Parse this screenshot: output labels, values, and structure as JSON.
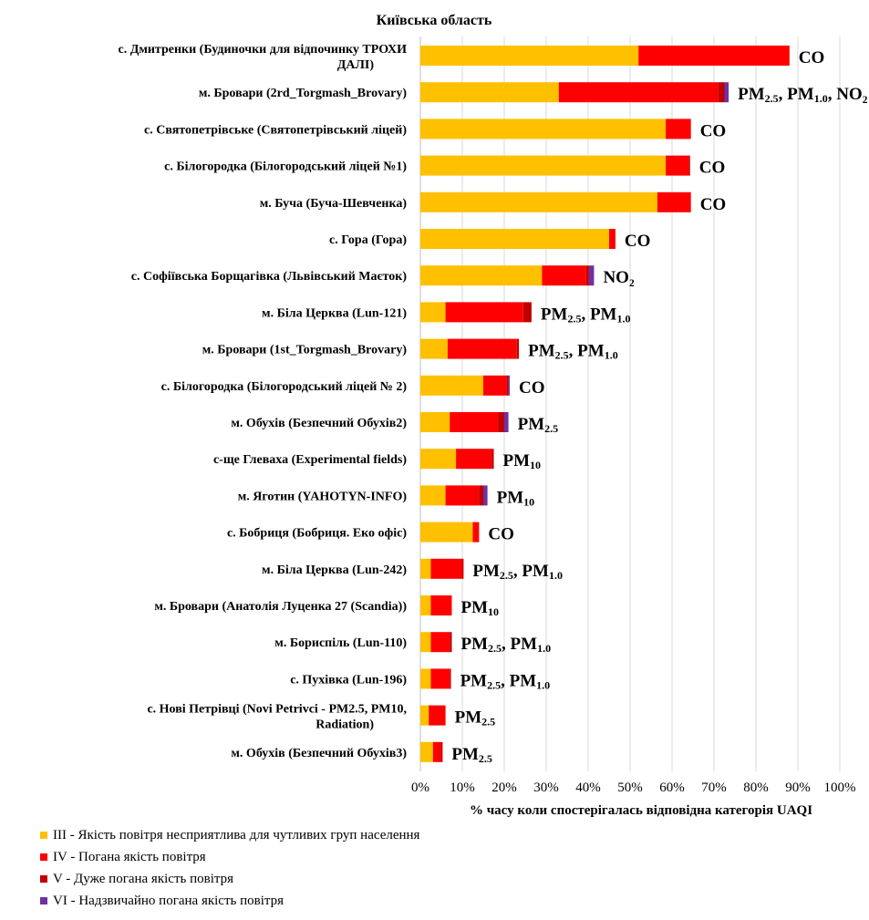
{
  "chart_data": {
    "type": "bar",
    "orientation": "horizontal",
    "stacked": true,
    "title": "Київська область",
    "xlabel": "% часу коли спостерігалась відповідна категорія UAQI",
    "ylabel": "",
    "xlim": [
      0,
      100
    ],
    "xticks": [
      "0%",
      "10%",
      "20%",
      "30%",
      "40%",
      "50%",
      "60%",
      "70%",
      "80%",
      "90%",
      "100%"
    ],
    "gridlines": true,
    "legend_position": "bottom-left",
    "categories": [
      "с. Дмитренки (Будиночки для відпочинку ТРОХИ ДАЛІ)",
      "м. Бровари  (2rd_Torgmash_Brovary)",
      "с. Святопетрівське (Святопетрівський ліцей)",
      "с. Білогородка (Білогородський ліцей №1)",
      "м. Буча  (Буча-Шевченка)",
      "с. Гора  (Гора)",
      "с. Софіївська Борщагівка  (Львівський Маєток)",
      "м. Біла Церква  (Lun-121)",
      "м. Бровари  (1st_Torgmash_Brovary)",
      "с. Білогородка (Білогородський ліцей № 2)",
      "м. Обухів  (Безпечний Обухів2)",
      "с-ще Глеваха  (Experimental fields)",
      "м. Яготин  (YAHOTYN-INFO)",
      "с. Бобриця  (Бобриця. Еко офіс)",
      "м. Біла Церква  (Lun-242)",
      "м. Бровари  (Анатолія Луценка 27 (Scandia))",
      "м. Бориспіль (Lun-110)",
      "с. Пухівка  (Lun-196)",
      "с. Нові Петрівці (Novi Petrivci - PM2.5, PM10, Radiation)",
      "м. Обухів  (Безпечний Обухів3)"
    ],
    "series": [
      {
        "name": "III - Якість повітря  несприятлива  для чутливих  груп  населення",
        "color": "#FFC000",
        "values": [
          52,
          33,
          58.5,
          58.5,
          56.5,
          45,
          29,
          6,
          6.5,
          15,
          7,
          8.5,
          6,
          12.5,
          2.5,
          2.5,
          2.5,
          2.5,
          2,
          3
        ]
      },
      {
        "name": "IV - Погана якість повітря",
        "color": "#FF0000",
        "values": [
          36,
          38,
          6,
          5.5,
          8,
          1.5,
          10.5,
          18.5,
          16.5,
          5.5,
          11.5,
          8.5,
          8,
          1.5,
          7.5,
          5,
          4.5,
          4.5,
          4,
          2
        ]
      },
      {
        "name": "V - Дуже погана  якість повітря",
        "color": "#C00000",
        "values": [
          0,
          1.5,
          0,
          0.3,
          0,
          0,
          0.7,
          2,
          0.5,
          0.5,
          1.5,
          0.5,
          1,
          0,
          0.3,
          0,
          0.5,
          0.3,
          0,
          0.3
        ]
      },
      {
        "name": "VI - Надзвичайно  погана  якість повітря",
        "color": "#7030A0",
        "values": [
          0,
          1,
          0,
          0,
          0,
          0,
          1.2,
          0,
          0,
          0.3,
          1,
          0,
          1,
          0,
          0,
          0,
          0,
          0,
          0,
          0
        ]
      }
    ],
    "annotations": [
      [
        {
          "t": "CO"
        }
      ],
      [
        {
          "t": "PM"
        },
        {
          "t": "2.5",
          "s": true
        },
        {
          "t": ", PM"
        },
        {
          "t": "1.0",
          "s": true
        },
        {
          "t": ", NO₂"
        }
      ],
      [
        {
          "t": "CO"
        }
      ],
      [
        {
          "t": "CO"
        }
      ],
      [
        {
          "t": "CO"
        }
      ],
      [
        {
          "t": "CO"
        }
      ],
      [
        {
          "t": "NO₂"
        }
      ],
      [
        {
          "t": "PM"
        },
        {
          "t": "2.5",
          "s": true
        },
        {
          "t": ", PM"
        },
        {
          "t": "1.0",
          "s": true
        }
      ],
      [
        {
          "t": "PM"
        },
        {
          "t": "2.5",
          "s": true
        },
        {
          "t": ", PM"
        },
        {
          "t": "1.0",
          "s": true
        }
      ],
      [
        {
          "t": "CO"
        }
      ],
      [
        {
          "t": "PM"
        },
        {
          "t": "2.5",
          "s": true
        }
      ],
      [
        {
          "t": "PM"
        },
        {
          "t": "10",
          "s": true
        }
      ],
      [
        {
          "t": "PM"
        },
        {
          "t": "10",
          "s": true
        }
      ],
      [
        {
          "t": "CO"
        }
      ],
      [
        {
          "t": "PM"
        },
        {
          "t": "2.5",
          "s": true
        },
        {
          "t": ", PM"
        },
        {
          "t": "1.0",
          "s": true
        }
      ],
      [
        {
          "t": "PM"
        },
        {
          "t": "10",
          "s": true
        }
      ],
      [
        {
          "t": "PM"
        },
        {
          "t": "2.5",
          "s": true
        },
        {
          "t": ", PM"
        },
        {
          "t": "1.0",
          "s": true
        }
      ],
      [
        {
          "t": "PM"
        },
        {
          "t": "2.5",
          "s": true
        },
        {
          "t": ", PM"
        },
        {
          "t": "1.0",
          "s": true
        }
      ],
      [
        {
          "t": "PM"
        },
        {
          "t": "2.5",
          "s": true
        }
      ],
      [
        {
          "t": "PM"
        },
        {
          "t": "2.5",
          "s": true
        }
      ]
    ]
  }
}
